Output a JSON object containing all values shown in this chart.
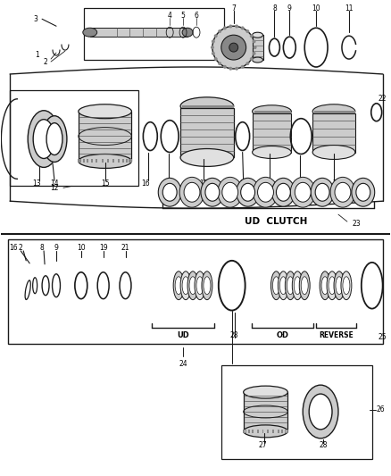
{
  "bg_color": "#ffffff",
  "line_color": "#1a1a1a",
  "gray_dark": "#555555",
  "gray_mid": "#888888",
  "gray_light": "#cccccc",
  "gray_lighter": "#e0e0e0",
  "ud_clutch_label": "UD  CLUTCH",
  "ud_label": "UD",
  "od_label": "OD",
  "reverse_label": "REVERSE"
}
